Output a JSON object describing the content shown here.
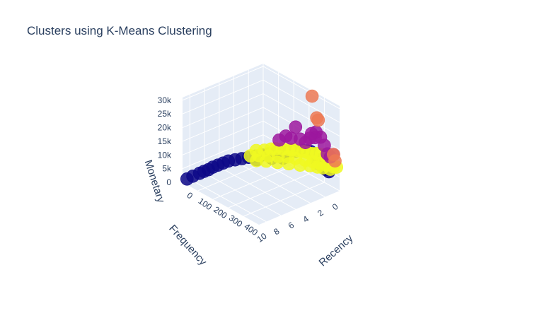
{
  "chart_data": {
    "type": "scatter3d",
    "title": "Clusters using K-Means Clustering",
    "axes": {
      "x": {
        "label": "Recency",
        "ticks": [
          "0",
          "100",
          "200",
          "300",
          "400"
        ]
      },
      "y": {
        "label": "Frequency",
        "ticks": [
          "0",
          "2",
          "4",
          "6",
          "8",
          "10"
        ]
      },
      "z": {
        "label": "Monetary",
        "ticks": [
          "0",
          "5k",
          "10k",
          "15k",
          "20k",
          "25k",
          "30k"
        ]
      }
    },
    "clusters": [
      {
        "color": "#0d0887",
        "points": [
          [
            5,
            10.5,
            800
          ],
          [
            10,
            9.8,
            1200
          ],
          [
            15,
            9.0,
            1500
          ],
          [
            20,
            8.5,
            1800
          ],
          [
            25,
            8.0,
            2000
          ],
          [
            30,
            7.5,
            2500
          ],
          [
            40,
            7.0,
            3000
          ],
          [
            50,
            6.5,
            3500
          ],
          [
            60,
            6.0,
            4000
          ],
          [
            80,
            5.5,
            4500
          ],
          [
            100,
            5.0,
            5000
          ],
          [
            120,
            4.5,
            5500
          ],
          [
            140,
            4.0,
            6000
          ],
          [
            160,
            3.5,
            6500
          ],
          [
            180,
            3.0,
            7000
          ],
          [
            200,
            2.5,
            7500
          ],
          [
            220,
            2.0,
            7800
          ],
          [
            240,
            1.5,
            8000
          ],
          [
            260,
            1.0,
            8200
          ],
          [
            280,
            0.5,
            8500
          ],
          [
            300,
            0.3,
            8700
          ],
          [
            320,
            0.2,
            9000
          ],
          [
            350,
            0.1,
            7000
          ],
          [
            370,
            0.1,
            6000
          ],
          [
            390,
            0.0,
            5500
          ],
          [
            410,
            0.0,
            5000
          ],
          [
            430,
            0.0,
            4800
          ],
          [
            200,
            3.0,
            6000
          ],
          [
            250,
            2.5,
            7000
          ],
          [
            150,
            4.0,
            5000
          ]
        ]
      },
      {
        "color": "#f0f921",
        "points": [
          [
            50,
            2.0,
            3000
          ],
          [
            80,
            1.5,
            3500
          ],
          [
            100,
            1.0,
            4000
          ],
          [
            120,
            0.8,
            4500
          ],
          [
            150,
            0.5,
            5000
          ],
          [
            180,
            0.3,
            5500
          ],
          [
            200,
            0.2,
            6000
          ],
          [
            230,
            0.1,
            6500
          ],
          [
            260,
            0.0,
            7000
          ],
          [
            290,
            0.0,
            7500
          ],
          [
            320,
            0.0,
            8000
          ],
          [
            350,
            0.0,
            9000
          ],
          [
            380,
            0.0,
            9500
          ],
          [
            410,
            0.0,
            10000
          ],
          [
            440,
            0.0,
            6000
          ],
          [
            60,
            3.0,
            2500
          ],
          [
            90,
            2.5,
            3000
          ],
          [
            130,
            2.0,
            3500
          ],
          [
            170,
            1.5,
            4000
          ],
          [
            210,
            1.0,
            4500
          ],
          [
            250,
            0.8,
            5000
          ],
          [
            300,
            0.5,
            5500
          ],
          [
            340,
            0.3,
            6000
          ],
          [
            380,
            0.2,
            6500
          ],
          [
            420,
            0.1,
            7000
          ],
          [
            460,
            0.0,
            7500
          ],
          [
            480,
            0.0,
            8000
          ],
          [
            100,
            3.0,
            2000
          ],
          [
            140,
            2.5,
            2500
          ],
          [
            190,
            2.0,
            3000
          ],
          [
            240,
            1.5,
            3500
          ],
          [
            290,
            1.0,
            4000
          ],
          [
            330,
            0.5,
            4500
          ],
          [
            370,
            0.3,
            5000
          ],
          [
            400,
            0.2,
            5500
          ]
        ]
      },
      {
        "color": "#9c179e",
        "points": [
          [
            300,
            0.5,
            12000
          ],
          [
            280,
            0.8,
            13000
          ],
          [
            320,
            0.3,
            14000
          ],
          [
            350,
            0.2,
            15000
          ],
          [
            380,
            0.1,
            16000
          ],
          [
            260,
            1.0,
            17000
          ],
          [
            240,
            1.2,
            12500
          ],
          [
            400,
            0.0,
            13500
          ],
          [
            420,
            0.0,
            11000
          ],
          [
            440,
            0.0,
            10500
          ],
          [
            460,
            0.0,
            12000
          ],
          [
            200,
            2.0,
            11500
          ],
          [
            220,
            1.5,
            13000
          ],
          [
            340,
            0.5,
            16500
          ],
          [
            360,
            0.3,
            17500
          ]
        ]
      },
      {
        "color": "#ed7953",
        "points": [
          [
            320,
            0.0,
            29000
          ],
          [
            350,
            0.0,
            22000
          ],
          [
            360,
            0.0,
            21500
          ],
          [
            460,
            0.0,
            12000
          ],
          [
            470,
            0.0,
            10000
          ]
        ]
      }
    ]
  }
}
